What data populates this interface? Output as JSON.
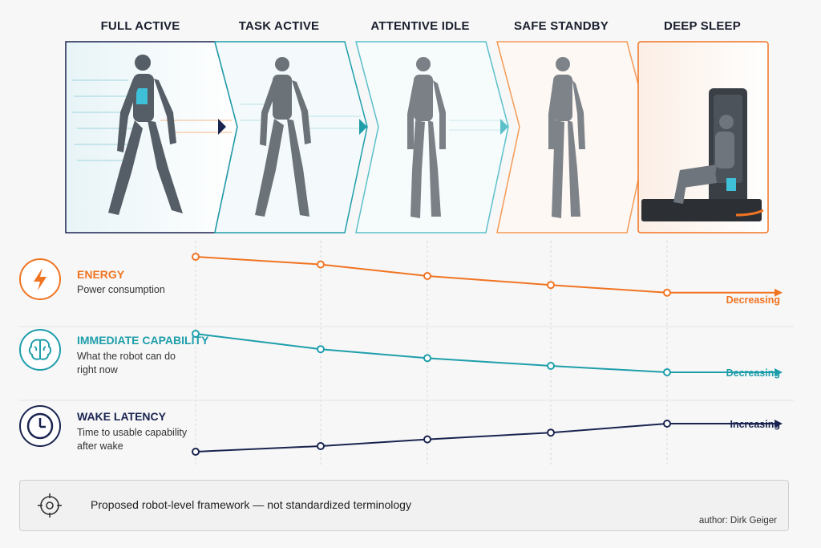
{
  "stages": [
    "FULL ACTIVE",
    "TASK ACTIVE",
    "ATTENTIVE IDLE",
    "SAFE STANDBY",
    "DEEP SLEEP"
  ],
  "colors": {
    "energy": "#f07422",
    "capability": "#1e9eab",
    "latency": "#1a2450",
    "stage_frames": [
      "#1a2450",
      "#1e9eab",
      "#5cc0cb",
      "#f59a55",
      "#f07422"
    ]
  },
  "metrics": [
    {
      "key": "energy",
      "name": "ENERGY",
      "desc": "Power consumption",
      "icon": "lightning-icon",
      "trend": "Decreasing"
    },
    {
      "key": "capability",
      "name": "IMMEDIATE CAPABILITY",
      "desc": "What the robot can do right now",
      "icon": "brain-icon",
      "trend": "Decreasing"
    },
    {
      "key": "latency",
      "name": "WAKE LATENCY",
      "desc": "Time to usable capability after wake",
      "icon": "clock-icon",
      "trend": "Increasing"
    }
  ],
  "chart_data": {
    "type": "line",
    "categories": [
      "FULL ACTIVE",
      "TASK ACTIVE",
      "ATTENTIVE IDLE",
      "SAFE STANDBY",
      "DEEP SLEEP"
    ],
    "series": [
      {
        "name": "ENERGY",
        "values": [
          1.0,
          0.88,
          0.7,
          0.56,
          0.44
        ]
      },
      {
        "name": "IMMEDIATE CAPABILITY",
        "values": [
          1.0,
          0.76,
          0.62,
          0.5,
          0.4
        ]
      },
      {
        "name": "WAKE LATENCY",
        "values": [
          0.1,
          0.2,
          0.32,
          0.44,
          0.6
        ]
      }
    ]
  },
  "footer": {
    "note": "Proposed robot-level framework — not standardized terminology",
    "author": "author: Dirk Geiger",
    "icon": "crosshair-icon"
  }
}
